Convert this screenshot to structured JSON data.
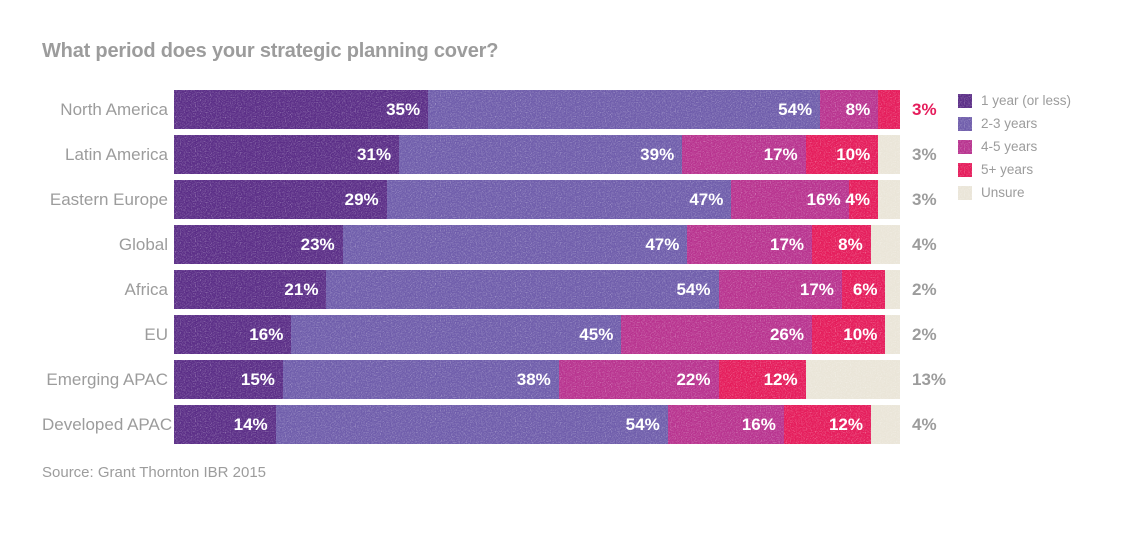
{
  "title": "What period does your strategic planning cover?",
  "source": "Source: Grant Thornton IBR 2015",
  "colors": {
    "background": "#ffffff",
    "title_text": "#9c9c9c",
    "category_text": "#9c9c9c",
    "inside_label_text": "#ffffff",
    "outside_label_default": "#9c9c9c",
    "outside_label_highlight": "#e51c5b"
  },
  "legend": {
    "position": "top-right",
    "items": [
      {
        "label": "1 year (or less)",
        "color": "#5b2e87"
      },
      {
        "label": "2-3 years",
        "color": "#6f5dab"
      },
      {
        "label": "4-5 years",
        "color": "#b8338f"
      },
      {
        "label": "5+ years",
        "color": "#e51c5b"
      },
      {
        "label": "Unsure",
        "color": "#eae5d8"
      }
    ]
  },
  "chart_data": {
    "type": "bar",
    "stacked": true,
    "orientation": "horizontal",
    "title": "What period does your strategic planning cover?",
    "value_unit": "%",
    "xlim": [
      0,
      100
    ],
    "grid": false,
    "legend_position": "top-right",
    "categories": [
      "North America",
      "Latin America",
      "Eastern Europe",
      "Global",
      "Africa",
      "EU",
      "Emerging APAC",
      "Developed APAC"
    ],
    "series": [
      {
        "name": "1 year (or less)",
        "color": "#5b2e87",
        "values": [
          35,
          31,
          29,
          23,
          21,
          16,
          15,
          14
        ]
      },
      {
        "name": "2-3 years",
        "color": "#6f5dab",
        "values": [
          54,
          39,
          47,
          47,
          54,
          45,
          38,
          54
        ]
      },
      {
        "name": "4-5 years",
        "color": "#b8338f",
        "values": [
          8,
          17,
          16,
          17,
          17,
          26,
          22,
          16
        ]
      },
      {
        "name": "5+ years",
        "color": "#e51c5b",
        "values": [
          3,
          10,
          4,
          8,
          6,
          10,
          12,
          12
        ]
      },
      {
        "name": "Unsure",
        "color": "#eae5d8",
        "values": [
          0,
          3,
          3,
          4,
          2,
          2,
          13,
          4
        ]
      }
    ]
  },
  "rows": [
    {
      "category": "North America",
      "segments": [
        {
          "series": "1 year (or less)",
          "value": 35,
          "label": "35%"
        },
        {
          "series": "2-3 years",
          "value": 54,
          "label": "54%"
        },
        {
          "series": "4-5 years",
          "value": 8,
          "label": "8%"
        },
        {
          "series": "5+ years",
          "value": 3,
          "label": ""
        }
      ],
      "outside_label": "3%",
      "outside_label_color": "#e51c5b"
    },
    {
      "category": "Latin America",
      "segments": [
        {
          "series": "1 year (or less)",
          "value": 31,
          "label": "31%"
        },
        {
          "series": "2-3 years",
          "value": 39,
          "label": "39%"
        },
        {
          "series": "4-5 years",
          "value": 17,
          "label": "17%"
        },
        {
          "series": "5+ years",
          "value": 10,
          "label": "10%"
        },
        {
          "series": "Unsure",
          "value": 3,
          "label": ""
        }
      ],
      "outside_label": "3%",
      "outside_label_color": "#9c9c9c"
    },
    {
      "category": "Eastern Europe",
      "segments": [
        {
          "series": "1 year (or less)",
          "value": 29,
          "label": "29%"
        },
        {
          "series": "2-3 years",
          "value": 47,
          "label": "47%"
        },
        {
          "series": "4-5 years",
          "value": 16,
          "label": "16%"
        },
        {
          "series": "5+ years",
          "value": 4,
          "label": "4%"
        },
        {
          "series": "Unsure",
          "value": 3,
          "label": ""
        }
      ],
      "outside_label": "3%",
      "outside_label_color": "#9c9c9c"
    },
    {
      "category": "Global",
      "segments": [
        {
          "series": "1 year (or less)",
          "value": 23,
          "label": "23%"
        },
        {
          "series": "2-3 years",
          "value": 47,
          "label": "47%"
        },
        {
          "series": "4-5 years",
          "value": 17,
          "label": "17%"
        },
        {
          "series": "5+ years",
          "value": 8,
          "label": "8%"
        },
        {
          "series": "Unsure",
          "value": 4,
          "label": ""
        }
      ],
      "outside_label": "4%",
      "outside_label_color": "#9c9c9c"
    },
    {
      "category": "Africa",
      "segments": [
        {
          "series": "1 year (or less)",
          "value": 21,
          "label": "21%"
        },
        {
          "series": "2-3 years",
          "value": 54,
          "label": "54%"
        },
        {
          "series": "4-5 years",
          "value": 17,
          "label": "17%"
        },
        {
          "series": "5+ years",
          "value": 6,
          "label": "6%"
        },
        {
          "series": "Unsure",
          "value": 2,
          "label": ""
        }
      ],
      "outside_label": "2%",
      "outside_label_color": "#9c9c9c"
    },
    {
      "category": "EU",
      "segments": [
        {
          "series": "1 year (or less)",
          "value": 16,
          "label": "16%"
        },
        {
          "series": "2-3 years",
          "value": 45,
          "label": "45%"
        },
        {
          "series": "4-5 years",
          "value": 26,
          "label": "26%"
        },
        {
          "series": "5+ years",
          "value": 10,
          "label": "10%"
        },
        {
          "series": "Unsure",
          "value": 2,
          "label": ""
        }
      ],
      "outside_label": "2%",
      "outside_label_color": "#9c9c9c"
    },
    {
      "category": "Emerging APAC",
      "segments": [
        {
          "series": "1 year (or less)",
          "value": 15,
          "label": "15%"
        },
        {
          "series": "2-3 years",
          "value": 38,
          "label": "38%"
        },
        {
          "series": "4-5 years",
          "value": 22,
          "label": "22%"
        },
        {
          "series": "5+ years",
          "value": 12,
          "label": "12%"
        },
        {
          "series": "Unsure",
          "value": 13,
          "label": ""
        }
      ],
      "outside_label": "13%",
      "outside_label_color": "#9c9c9c"
    },
    {
      "category": "Developed APAC",
      "segments": [
        {
          "series": "1 year (or less)",
          "value": 14,
          "label": "14%"
        },
        {
          "series": "2-3 years",
          "value": 54,
          "label": "54%"
        },
        {
          "series": "4-5 years",
          "value": 16,
          "label": "16%"
        },
        {
          "series": "5+ years",
          "value": 12,
          "label": "12%"
        },
        {
          "series": "Unsure",
          "value": 4,
          "label": ""
        }
      ],
      "outside_label": "4%",
      "outside_label_color": "#9c9c9c"
    }
  ]
}
